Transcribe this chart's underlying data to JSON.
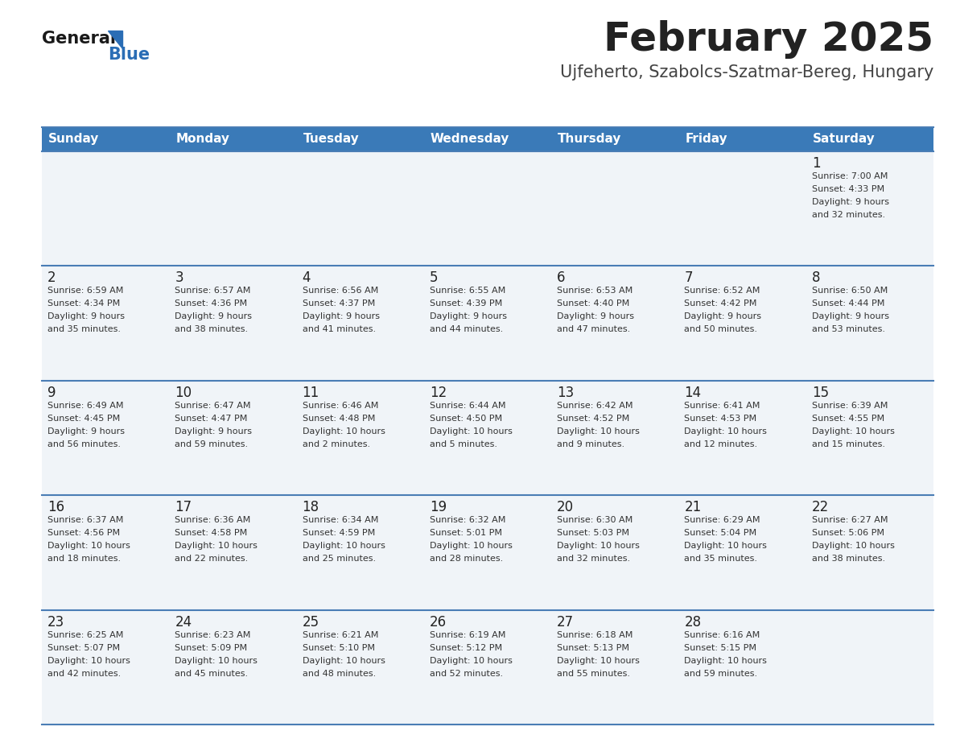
{
  "title": "February 2025",
  "subtitle": "Ujfeherto, Szabolcs-Szatmar-Bereg, Hungary",
  "days_of_week": [
    "Sunday",
    "Monday",
    "Tuesday",
    "Wednesday",
    "Thursday",
    "Friday",
    "Saturday"
  ],
  "header_bg_color": "#3a7ab8",
  "header_text_color": "#ffffff",
  "cell_bg_color": "#f0f4f8",
  "separator_color": "#4a7db5",
  "text_color": "#333333",
  "day_number_color": "#222222",
  "title_color": "#222222",
  "subtitle_color": "#444444",
  "logo_general_color": "#1a1a1a",
  "logo_blue_color": "#2a6db5",
  "calendar_data": [
    [
      null,
      null,
      null,
      null,
      null,
      null,
      {
        "day": 1,
        "sunrise": "7:00 AM",
        "sunset": "4:33 PM",
        "daylight": "9 hours\nand 32 minutes."
      }
    ],
    [
      {
        "day": 2,
        "sunrise": "6:59 AM",
        "sunset": "4:34 PM",
        "daylight": "9 hours\nand 35 minutes."
      },
      {
        "day": 3,
        "sunrise": "6:57 AM",
        "sunset": "4:36 PM",
        "daylight": "9 hours\nand 38 minutes."
      },
      {
        "day": 4,
        "sunrise": "6:56 AM",
        "sunset": "4:37 PM",
        "daylight": "9 hours\nand 41 minutes."
      },
      {
        "day": 5,
        "sunrise": "6:55 AM",
        "sunset": "4:39 PM",
        "daylight": "9 hours\nand 44 minutes."
      },
      {
        "day": 6,
        "sunrise": "6:53 AM",
        "sunset": "4:40 PM",
        "daylight": "9 hours\nand 47 minutes."
      },
      {
        "day": 7,
        "sunrise": "6:52 AM",
        "sunset": "4:42 PM",
        "daylight": "9 hours\nand 50 minutes."
      },
      {
        "day": 8,
        "sunrise": "6:50 AM",
        "sunset": "4:44 PM",
        "daylight": "9 hours\nand 53 minutes."
      }
    ],
    [
      {
        "day": 9,
        "sunrise": "6:49 AM",
        "sunset": "4:45 PM",
        "daylight": "9 hours\nand 56 minutes."
      },
      {
        "day": 10,
        "sunrise": "6:47 AM",
        "sunset": "4:47 PM",
        "daylight": "9 hours\nand 59 minutes."
      },
      {
        "day": 11,
        "sunrise": "6:46 AM",
        "sunset": "4:48 PM",
        "daylight": "10 hours\nand 2 minutes."
      },
      {
        "day": 12,
        "sunrise": "6:44 AM",
        "sunset": "4:50 PM",
        "daylight": "10 hours\nand 5 minutes."
      },
      {
        "day": 13,
        "sunrise": "6:42 AM",
        "sunset": "4:52 PM",
        "daylight": "10 hours\nand 9 minutes."
      },
      {
        "day": 14,
        "sunrise": "6:41 AM",
        "sunset": "4:53 PM",
        "daylight": "10 hours\nand 12 minutes."
      },
      {
        "day": 15,
        "sunrise": "6:39 AM",
        "sunset": "4:55 PM",
        "daylight": "10 hours\nand 15 minutes."
      }
    ],
    [
      {
        "day": 16,
        "sunrise": "6:37 AM",
        "sunset": "4:56 PM",
        "daylight": "10 hours\nand 18 minutes."
      },
      {
        "day": 17,
        "sunrise": "6:36 AM",
        "sunset": "4:58 PM",
        "daylight": "10 hours\nand 22 minutes."
      },
      {
        "day": 18,
        "sunrise": "6:34 AM",
        "sunset": "4:59 PM",
        "daylight": "10 hours\nand 25 minutes."
      },
      {
        "day": 19,
        "sunrise": "6:32 AM",
        "sunset": "5:01 PM",
        "daylight": "10 hours\nand 28 minutes."
      },
      {
        "day": 20,
        "sunrise": "6:30 AM",
        "sunset": "5:03 PM",
        "daylight": "10 hours\nand 32 minutes."
      },
      {
        "day": 21,
        "sunrise": "6:29 AM",
        "sunset": "5:04 PM",
        "daylight": "10 hours\nand 35 minutes."
      },
      {
        "day": 22,
        "sunrise": "6:27 AM",
        "sunset": "5:06 PM",
        "daylight": "10 hours\nand 38 minutes."
      }
    ],
    [
      {
        "day": 23,
        "sunrise": "6:25 AM",
        "sunset": "5:07 PM",
        "daylight": "10 hours\nand 42 minutes."
      },
      {
        "day": 24,
        "sunrise": "6:23 AM",
        "sunset": "5:09 PM",
        "daylight": "10 hours\nand 45 minutes."
      },
      {
        "day": 25,
        "sunrise": "6:21 AM",
        "sunset": "5:10 PM",
        "daylight": "10 hours\nand 48 minutes."
      },
      {
        "day": 26,
        "sunrise": "6:19 AM",
        "sunset": "5:12 PM",
        "daylight": "10 hours\nand 52 minutes."
      },
      {
        "day": 27,
        "sunrise": "6:18 AM",
        "sunset": "5:13 PM",
        "daylight": "10 hours\nand 55 minutes."
      },
      {
        "day": 28,
        "sunrise": "6:16 AM",
        "sunset": "5:15 PM",
        "daylight": "10 hours\nand 59 minutes."
      },
      null
    ]
  ]
}
